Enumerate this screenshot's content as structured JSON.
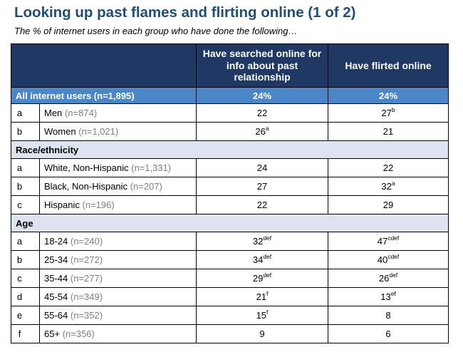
{
  "title": "Looking up past flames and flirting online (1 of 2)",
  "subtitle": "The % of internet users in each group who have done the following…",
  "columns": [
    "Have searched online for info about past relationship",
    "Have flirted online"
  ],
  "all": {
    "label": "All internet users (n=1,895)",
    "v1": "24%",
    "v2": "24%"
  },
  "sections": [
    {
      "label": "",
      "rows": [
        {
          "letter": "a",
          "label": "Men",
          "n": "(n=874)",
          "v1": "22",
          "s1": "",
          "v2": "27",
          "s2": "b"
        },
        {
          "letter": "b",
          "label": "Women",
          "n": "(n=1,021)",
          "v1": "26",
          "s1": "a",
          "v2": "21",
          "s2": ""
        }
      ]
    },
    {
      "label": "Race/ethnicity",
      "rows": [
        {
          "letter": "a",
          "label": "White, Non-Hispanic",
          "n": "(n=1,331)",
          "v1": "24",
          "s1": "",
          "v2": "22",
          "s2": ""
        },
        {
          "letter": "b",
          "label": "Black, Non-Hispanic",
          "n": "(n=207)",
          "v1": "27",
          "s1": "",
          "v2": "32",
          "s2": "a"
        },
        {
          "letter": "c",
          "label": "Hispanic",
          "n": "(n=196)",
          "v1": "22",
          "s1": "",
          "v2": "29",
          "s2": ""
        }
      ]
    },
    {
      "label": "Age",
      "rows": [
        {
          "letter": "a",
          "label": "18-24",
          "n": "(n=240)",
          "v1": "32",
          "s1": "def",
          "v2": "47",
          "s2": "cdef"
        },
        {
          "letter": "b",
          "label": "25-34",
          "n": "(n=272)",
          "v1": "34",
          "s1": "def",
          "v2": "40",
          "s2": "cdef"
        },
        {
          "letter": "c",
          "label": "35-44",
          "n": "(n=277)",
          "v1": "29",
          "s1": "def",
          "v2": "26",
          "s2": "def"
        },
        {
          "letter": "d",
          "label": "45-54",
          "n": "(n=349)",
          "v1": "21",
          "s1": "f",
          "v2": "13",
          "s2": "ef"
        },
        {
          "letter": "e",
          "label": "55-64",
          "n": "(n=352)",
          "v1": "15",
          "s1": "f",
          "v2": "8",
          "s2": ""
        },
        {
          "letter": "f",
          "label": "65+",
          "n": "(n=356)",
          "v1": "9",
          "s1": "",
          "v2": "6",
          "s2": ""
        }
      ]
    }
  ],
  "chart_data": {
    "type": "table",
    "title": "Looking up past flames and flirting online (1 of 2)",
    "columns": [
      "Have searched online for info about past relationship",
      "Have flirted online"
    ],
    "rows": [
      {
        "group": "All internet users (n=1,895)",
        "values": [
          24,
          24
        ]
      },
      {
        "group": "Men (n=874)",
        "values": [
          22,
          27
        ]
      },
      {
        "group": "Women (n=1,021)",
        "values": [
          26,
          21
        ]
      },
      {
        "group": "White, Non-Hispanic (n=1,331)",
        "values": [
          24,
          22
        ]
      },
      {
        "group": "Black, Non-Hispanic (n=207)",
        "values": [
          27,
          32
        ]
      },
      {
        "group": "Hispanic (n=196)",
        "values": [
          22,
          29
        ]
      },
      {
        "group": "18-24 (n=240)",
        "values": [
          32,
          47
        ]
      },
      {
        "group": "25-34 (n=272)",
        "values": [
          34,
          40
        ]
      },
      {
        "group": "35-44 (n=277)",
        "values": [
          29,
          26
        ]
      },
      {
        "group": "45-54 (n=349)",
        "values": [
          21,
          13
        ]
      },
      {
        "group": "55-64 (n=352)",
        "values": [
          15,
          8
        ]
      },
      {
        "group": "65+ (n=356)",
        "values": [
          9,
          6
        ]
      }
    ]
  }
}
